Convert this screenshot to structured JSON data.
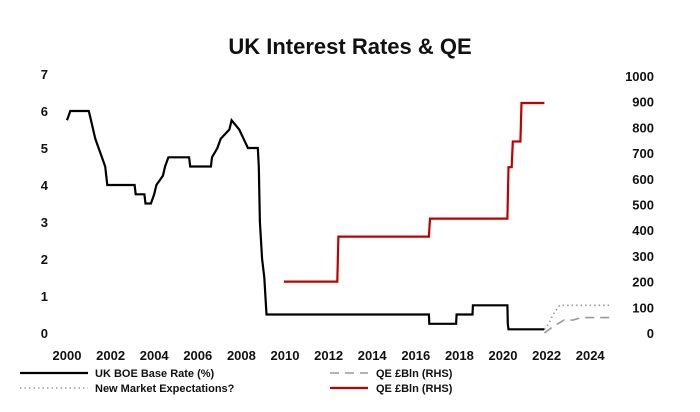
{
  "chart_data": {
    "type": "line",
    "title": "UK Interest Rates & QE",
    "xlabel": "",
    "ylabel": "",
    "x_ticks": [
      "2000",
      "2002",
      "2004",
      "2006",
      "2008",
      "2010",
      "2012",
      "2014",
      "2016",
      "2018",
      "2020",
      "2022",
      "2024"
    ],
    "y_left_ticks": [
      "0",
      "1",
      "2",
      "3",
      "4",
      "5",
      "6",
      "7"
    ],
    "y_right_ticks": [
      "0",
      "100",
      "200",
      "300",
      "400",
      "500",
      "600",
      "700",
      "800",
      "900",
      "1000"
    ],
    "xlim": [
      2000,
      2025
    ],
    "ylim_left": [
      0,
      7
    ],
    "ylim_right": [
      0,
      1000
    ],
    "grid": false,
    "legend_position": "bottom",
    "series": [
      {
        "name": "UK BOE Base Rate (%)",
        "axis": "left",
        "color": "#000000",
        "style": "solid",
        "points": [
          [
            2000.0,
            5.75
          ],
          [
            2000.15,
            6.0
          ],
          [
            2001.0,
            6.0
          ],
          [
            2001.1,
            5.75
          ],
          [
            2001.3,
            5.25
          ],
          [
            2001.6,
            4.75
          ],
          [
            2001.75,
            4.5
          ],
          [
            2001.85,
            4.0
          ],
          [
            2003.1,
            4.0
          ],
          [
            2003.15,
            3.75
          ],
          [
            2003.55,
            3.75
          ],
          [
            2003.6,
            3.5
          ],
          [
            2003.85,
            3.5
          ],
          [
            2004.0,
            3.75
          ],
          [
            2004.1,
            4.0
          ],
          [
            2004.4,
            4.25
          ],
          [
            2004.5,
            4.5
          ],
          [
            2004.65,
            4.75
          ],
          [
            2005.6,
            4.75
          ],
          [
            2005.65,
            4.5
          ],
          [
            2006.6,
            4.5
          ],
          [
            2006.65,
            4.75
          ],
          [
            2006.9,
            5.0
          ],
          [
            2007.05,
            5.25
          ],
          [
            2007.45,
            5.5
          ],
          [
            2007.55,
            5.75
          ],
          [
            2007.9,
            5.5
          ],
          [
            2008.1,
            5.25
          ],
          [
            2008.3,
            5.0
          ],
          [
            2008.75,
            5.0
          ],
          [
            2008.8,
            4.5
          ],
          [
            2008.85,
            3.0
          ],
          [
            2008.95,
            2.0
          ],
          [
            2009.05,
            1.5
          ],
          [
            2009.15,
            0.5
          ],
          [
            2016.6,
            0.5
          ],
          [
            2016.62,
            0.25
          ],
          [
            2017.85,
            0.25
          ],
          [
            2017.87,
            0.5
          ],
          [
            2018.6,
            0.5
          ],
          [
            2018.62,
            0.75
          ],
          [
            2020.2,
            0.75
          ],
          [
            2020.22,
            0.25
          ],
          [
            2020.25,
            0.1
          ],
          [
            2021.9,
            0.1
          ]
        ]
      },
      {
        "name": "New Market Expectations?",
        "axis": "left",
        "color": "#999999",
        "style": "dotted",
        "points": [
          [
            2021.9,
            0.1
          ],
          [
            2022.1,
            0.25
          ],
          [
            2022.3,
            0.5
          ],
          [
            2022.6,
            0.75
          ],
          [
            2025.0,
            0.75
          ]
        ]
      },
      {
        "name": "QE £Bln (RHS)",
        "axis": "right",
        "color": "#999999",
        "style": "dashed",
        "points": [
          [
            2021.9,
            0
          ],
          [
            2022.3,
            25
          ],
          [
            2022.8,
            50
          ],
          [
            2023.2,
            50
          ],
          [
            2023.6,
            60
          ],
          [
            2025.0,
            60
          ]
        ]
      },
      {
        "name": "QE £Bln (RHS)",
        "axis": "right",
        "color": "#c00000",
        "style": "solid",
        "points": [
          [
            2009.95,
            200
          ],
          [
            2012.4,
            200
          ],
          [
            2012.45,
            375
          ],
          [
            2016.6,
            375
          ],
          [
            2016.65,
            445
          ],
          [
            2020.2,
            445
          ],
          [
            2020.25,
            645
          ],
          [
            2020.4,
            645
          ],
          [
            2020.45,
            745
          ],
          [
            2020.8,
            745
          ],
          [
            2020.85,
            895
          ],
          [
            2021.9,
            895
          ]
        ]
      }
    ]
  }
}
